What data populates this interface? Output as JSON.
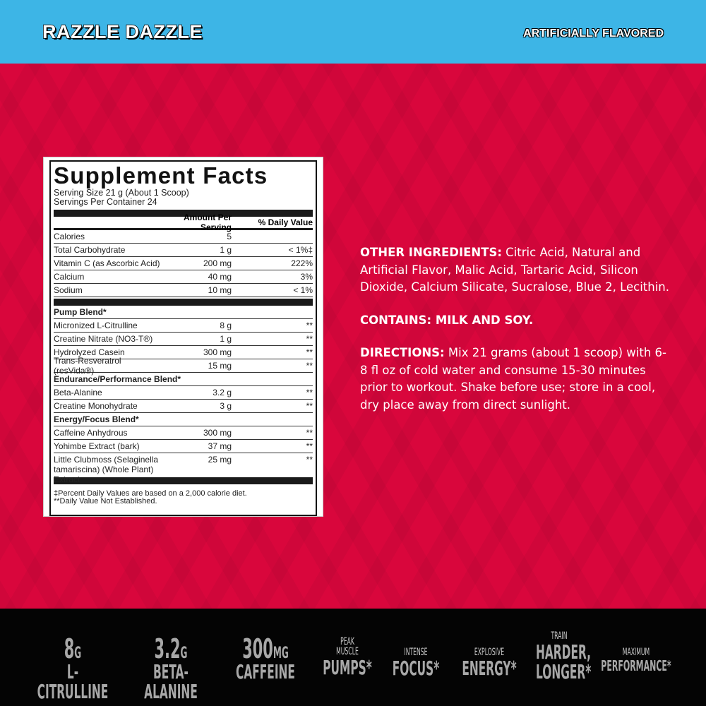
{
  "header": {
    "flavor": "RAZZLE DAZZLE",
    "note": "ARTIFICIALLY FLAVORED"
  },
  "colors": {
    "top_bar": "#3db5e6",
    "background": "#d9063c",
    "bottom_bar": "#040404"
  },
  "facts": {
    "title": "Supplement Facts",
    "serving_size": "Serving Size 21 g (About 1 Scoop)",
    "servings": "Servings Per Container 24",
    "col_amount": "Amount Per Serving",
    "col_dv": "% Daily Value",
    "nutrients": [
      {
        "name": "Calories",
        "amount": "5",
        "dv": ""
      },
      {
        "name": "Total Carbohydrate",
        "amount": "1 g",
        "dv": "< 1%‡"
      },
      {
        "name": "Vitamin C (as Ascorbic Acid)",
        "amount": "200 mg",
        "dv": "222%"
      },
      {
        "name": "Calcium",
        "amount": "40 mg",
        "dv": "3%"
      },
      {
        "name": "Sodium",
        "amount": "10 mg",
        "dv": "< 1%"
      }
    ],
    "blends": [
      {
        "name": "Pump Blend*",
        "items": [
          {
            "name": "Micronized L-Citrulline",
            "amount": "8 g",
            "dv": "**"
          },
          {
            "name": "Creatine Nitrate (NO3-T®)",
            "amount": "1 g",
            "dv": "**"
          },
          {
            "name": "Hydrolyzed Casein",
            "amount": "300 mg",
            "dv": "**"
          },
          {
            "name": "Trans-Resveratrol (resVida®)",
            "amount": "15 mg",
            "dv": "**"
          }
        ]
      },
      {
        "name": "Endurance/Performance Blend*",
        "items": [
          {
            "name": "Beta-Alanine",
            "amount": "3.2 g",
            "dv": "**"
          },
          {
            "name": "Creatine Monohydrate",
            "amount": "3 g",
            "dv": "**"
          }
        ]
      },
      {
        "name": "Energy/Focus Blend*",
        "items": [
          {
            "name": "Caffeine Anhydrous",
            "amount": "300 mg",
            "dv": "**"
          },
          {
            "name": "Yohimbe Extract (bark)",
            "amount": "37 mg",
            "dv": "**"
          },
          {
            "name": "Little Clubmoss (Selaginella tamariscina) (Whole Plant) Extract",
            "amount": "25 mg",
            "dv": "**"
          }
        ]
      }
    ],
    "footnote1": "‡Percent Daily Values are based on a 2,000 calorie diet.",
    "footnote2": "**Daily Value Not Established."
  },
  "info": {
    "other_label": "OTHER INGREDIENTS:",
    "other_text": " Citric Acid, Natural and Artificial Flavor, Malic Acid, Tartaric Acid, Silicon Dioxide, Calcium Silicate, Sucralose, Blue 2, Lecithin.",
    "contains": "CONTAINS: MILK AND SOY.",
    "directions_label": "DIRECTIONS:",
    "directions_text": " Mix 21 grams (about 1 scoop) with 6-8 fl oz of cold water and consume 15-30 minutes prior to workout. Shake before use; store in a cool, dry place away from direct sunlight."
  },
  "features": [
    {
      "value": "8",
      "unit": "G",
      "label": "L-CITRULLINE"
    },
    {
      "value": "3.2",
      "unit": "G",
      "label": "BETA-ALANINE"
    },
    {
      "value": "300",
      "unit": "MG",
      "label": "CAFFEINE"
    },
    {
      "top": "PEAK MUSCLE",
      "main": "PUMPS*"
    },
    {
      "top": "INTENSE",
      "main": "FOCUS*"
    },
    {
      "top": "EXPLOSIVE",
      "main": "ENERGY*"
    },
    {
      "top": "TRAIN",
      "main": "HARDER, LONGER*"
    },
    {
      "top": "MAXIMUM",
      "main": "PERFORMANCE*"
    }
  ]
}
